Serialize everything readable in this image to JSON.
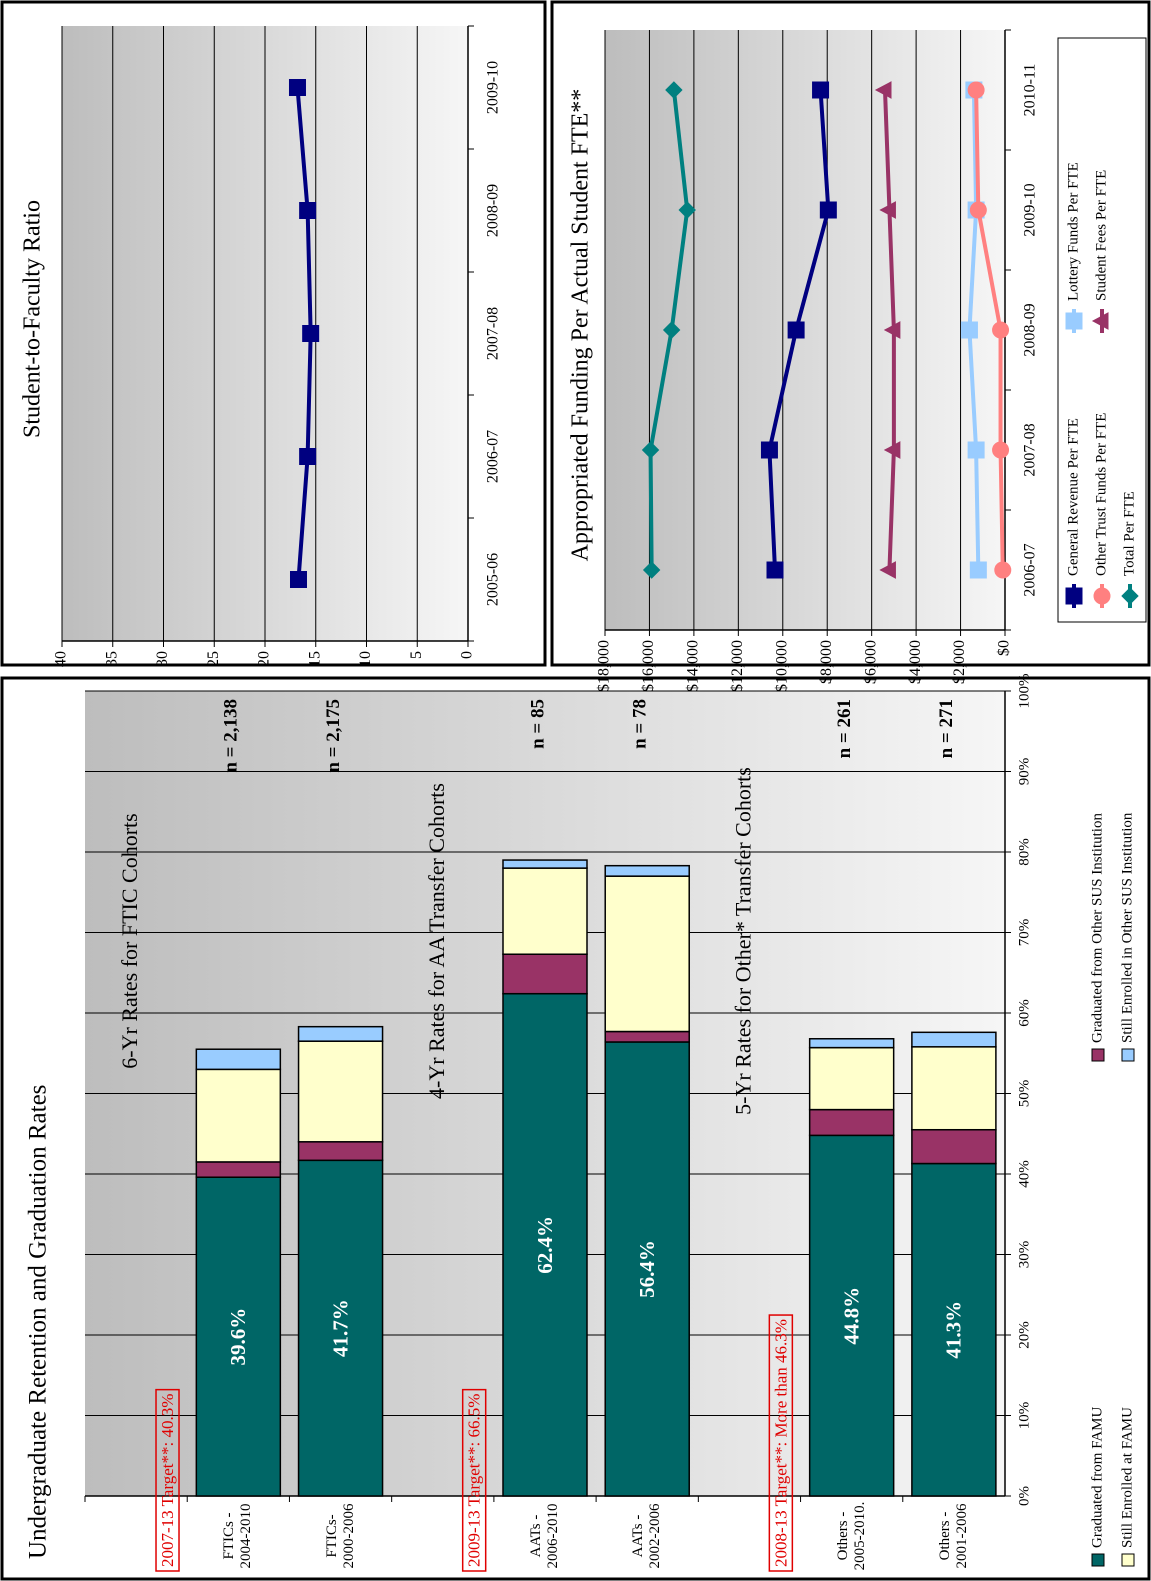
{
  "chart_data": [
    {
      "type": "stacked_bar",
      "orientation": "horizontal",
      "title": "Undergraduate Retention and Graduation Rates",
      "categories": [
        null,
        "FTICs -\n2004-2010",
        "FTICs-\n2000-2006",
        null,
        "AATs -\n2006-2010",
        "AATs -\n2002-2006",
        null,
        "Others -\n2005-2010.",
        "Others -\n2001-2006"
      ],
      "series": [
        {
          "name": "Graduated from FAMU",
          "color": "#006666",
          "values": [
            null,
            39.6,
            41.7,
            null,
            62.4,
            56.4,
            null,
            44.8,
            41.3
          ],
          "value_labels": [
            null,
            "39.6%",
            "41.7%",
            null,
            "62.4%",
            "56.4%",
            null,
            "44.8%",
            "41.3%"
          ]
        },
        {
          "name": "Graduated from Other SUS Institution",
          "color": "#993366",
          "values": [
            null,
            1.9,
            2.3,
            null,
            4.9,
            1.3,
            null,
            3.2,
            4.2
          ]
        },
        {
          "name": "Still Enrolled at FAMU",
          "color": "#FFFFCC",
          "values": [
            null,
            11.5,
            12.5,
            null,
            10.7,
            19.3,
            null,
            7.7,
            10.3
          ]
        },
        {
          "name": "Still Enrolled in Other SUS Institution",
          "color": "#99CCFF",
          "values": [
            null,
            2.5,
            1.8,
            null,
            1.0,
            1.3,
            null,
            1.1,
            1.8
          ]
        }
      ],
      "n_labels": [
        null,
        "n = 2,138",
        "n = 2,175",
        null,
        "n = 85",
        "n = 78",
        null,
        "n = 261",
        "n = 271"
      ],
      "group_headings": [
        "6-Yr Rates for FTIC Cohorts",
        "4-Yr Rates for AA Transfer Cohorts",
        "5-Yr Rates for Other* Transfer Cohorts"
      ],
      "targets": [
        "2007-13 Target**:  40.3%",
        "2009-13 Target**:  66.5%",
        "2008-13 Target**:  More than 46.3%"
      ],
      "xlim": [
        0,
        100
      ],
      "xticks": [
        {
          "value": 0,
          "label": "0%"
        },
        {
          "value": 10,
          "label": "10%"
        },
        {
          "value": 20,
          "label": "20%"
        },
        {
          "value": 30,
          "label": "30%"
        },
        {
          "value": 40,
          "label": "40%"
        },
        {
          "value": 50,
          "label": "50%"
        },
        {
          "value": 60,
          "label": "60%"
        },
        {
          "value": 70,
          "label": "70%"
        },
        {
          "value": 80,
          "label": "80%"
        },
        {
          "value": 90,
          "label": "90%"
        },
        {
          "value": 100,
          "label": "100%"
        }
      ],
      "grid": true,
      "legend": "bottom"
    },
    {
      "type": "line",
      "title": "Student-to-Faculty Ratio",
      "categories": [
        "2005-06",
        "2006-07",
        "2007-08",
        "2008-09",
        "2009-10"
      ],
      "series": [
        {
          "color": "#000080",
          "marker": "square",
          "values": [
            16.7,
            15.8,
            15.5,
            15.8,
            16.8
          ]
        }
      ],
      "ylim": [
        0,
        40
      ],
      "yticks": [
        0,
        5,
        10,
        15,
        20,
        25,
        30,
        35,
        40
      ],
      "grid": true
    },
    {
      "type": "line",
      "title": "Appropriated Funding Per Actual Student FTE**",
      "categories": [
        "2006-07",
        "2007-08",
        "2008-09",
        "2009-10",
        "2010-11"
      ],
      "series": [
        {
          "name": "General Revenue Per FTE",
          "color": "#000080",
          "marker": "square",
          "values": [
            10350,
            10600,
            9400,
            7950,
            8300
          ]
        },
        {
          "name": "Lottery Funds Per FTE",
          "color": "#99CCFF",
          "marker": "square",
          "values": [
            1200,
            1300,
            1600,
            1300,
            1400
          ]
        },
        {
          "name": "Other Trust Funds Per FTE",
          "color": "#FF8080",
          "marker": "circle",
          "values": [
            100,
            200,
            200,
            1200,
            1300
          ]
        },
        {
          "name": "Student Fees Per FTE",
          "color": "#993366",
          "marker": "triangle",
          "values": [
            5200,
            5000,
            5000,
            5200,
            5400
          ]
        },
        {
          "name": "Total Per FTE",
          "color": "#008080",
          "marker": "diamond",
          "values": [
            15900,
            15950,
            15000,
            14300,
            14900
          ]
        }
      ],
      "ylim": [
        0,
        18000
      ],
      "yticks": [
        {
          "value": 0,
          "label": "$0"
        },
        {
          "value": 2000,
          "label": "$2,000"
        },
        {
          "value": 4000,
          "label": "$4,000"
        },
        {
          "value": 6000,
          "label": "$6,000"
        },
        {
          "value": 8000,
          "label": "$8,000"
        },
        {
          "value": 10000,
          "label": "$10,000"
        },
        {
          "value": 12000,
          "label": "$12,000"
        },
        {
          "value": 14000,
          "label": "$14,000"
        },
        {
          "value": 16000,
          "label": "$16,000"
        },
        {
          "value": 18000,
          "label": "$18,000"
        }
      ],
      "grid": true,
      "legend": "bottom"
    }
  ]
}
